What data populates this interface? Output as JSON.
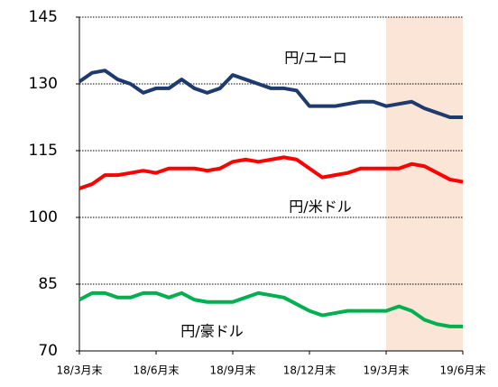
{
  "chart_data": {
    "type": "line",
    "categories": [
      "18/3月末",
      null,
      null,
      null,
      null,
      null,
      "18/6月末",
      null,
      null,
      null,
      null,
      null,
      "18/9月末",
      null,
      null,
      null,
      null,
      null,
      "18/12月末",
      null,
      null,
      null,
      null,
      null,
      "19/3月末",
      null,
      null,
      null,
      null,
      null,
      "19/6月末"
    ],
    "series": [
      {
        "name": "円/ユーロ",
        "color": "#1f3a6e",
        "values": [
          130.5,
          132.5,
          133,
          131,
          130,
          128,
          129,
          129,
          131,
          129,
          128,
          129,
          132,
          131,
          130,
          129,
          129,
          128.5,
          125,
          125,
          125,
          125.5,
          126,
          126,
          125,
          125.5,
          126,
          124.5,
          123.5,
          122.5,
          122.5
        ]
      },
      {
        "name": "円/米ドル",
        "color": "#ff0000",
        "values": [
          106.5,
          107.5,
          109.5,
          109.5,
          110,
          110.5,
          110,
          111,
          111,
          111,
          110.5,
          111,
          112.5,
          113,
          112.5,
          113,
          113.5,
          113,
          111,
          109,
          109.5,
          110,
          111,
          111,
          111,
          111,
          112,
          111.5,
          110,
          108.5,
          108
        ]
      },
      {
        "name": "円/豪ドル",
        "color": "#00b050",
        "values": [
          81.5,
          83,
          83,
          82,
          82,
          83,
          83,
          82,
          83,
          81.5,
          81,
          81,
          81,
          82,
          83,
          82.5,
          82,
          80.5,
          79,
          78,
          78.5,
          79,
          79,
          79,
          79,
          80,
          79,
          77,
          76,
          75.5,
          75.5
        ]
      }
    ],
    "ylim": [
      70,
      145
    ],
    "yticks": [
      70,
      85,
      100,
      115,
      130,
      145
    ],
    "grid": true,
    "highlight": {
      "from": "19/3月末",
      "to": "19/6月末",
      "color": "#fbe5d6"
    }
  }
}
